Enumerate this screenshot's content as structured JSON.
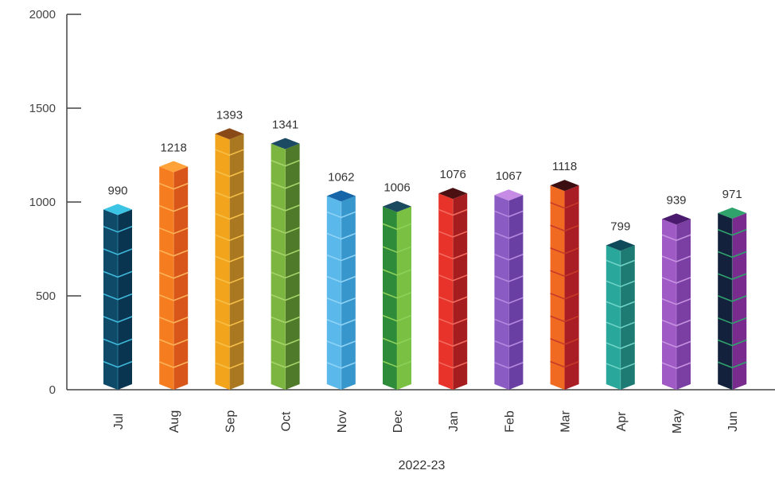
{
  "chart_data": {
    "type": "bar",
    "title": "",
    "xlabel": "2022-23",
    "ylabel": "",
    "ylim": [
      0,
      2000
    ],
    "yticks": [
      0,
      500,
      1000,
      1500,
      2000
    ],
    "ytick_labels": [
      "0",
      "500",
      "1000",
      "1500",
      "2000"
    ],
    "grid": false,
    "legend": "none",
    "categories": [
      "Jul",
      "Aug",
      "Sep",
      "Oct",
      "Nov",
      "Dec",
      "Jan",
      "Feb",
      "Mar",
      "Apr",
      "May",
      "Jun"
    ],
    "values": [
      990,
      1218,
      1393,
      1341,
      1062,
      1006,
      1076,
      1067,
      1118,
      799,
      939,
      971
    ],
    "data_labels": [
      "990",
      "1218",
      "1393",
      "1341",
      "1062",
      "1006",
      "1076",
      "1067",
      "1118",
      "799",
      "939",
      "971"
    ],
    "bar_colors": [
      {
        "front": "#0f4a68",
        "side": "#0a3550",
        "top": "#3cc4e4",
        "seam": "#3fb7d9"
      },
      {
        "front": "#f57d1f",
        "side": "#d9561a",
        "top": "#ffa23a",
        "seam": "#fdb35a"
      },
      {
        "front": "#f2a51c",
        "side": "#a97820",
        "top": "#8a4a17",
        "seam": "#f7c04a"
      },
      {
        "front": "#7cb641",
        "side": "#4f7a2a",
        "top": "#1c4a63",
        "seam": "#a7d46a"
      },
      {
        "front": "#5bb8ea",
        "side": "#3796cc",
        "top": "#1565a8",
        "seam": "#8fd3f6"
      },
      {
        "front": "#2e8b3a",
        "side": "#7ac143",
        "top": "#1b4a5e",
        "seam": "#8ed05a"
      },
      {
        "front": "#e8332a",
        "side": "#a51d1f",
        "top": "#4a1012",
        "seam": "#f36b5f"
      },
      {
        "front": "#8a5bc2",
        "side": "#6a3fa3",
        "top": "#c58be5",
        "seam": "#b48ae0"
      },
      {
        "front": "#f06a22",
        "side": "#a91e24",
        "top": "#3b0f12",
        "seam": "#c63a2a"
      },
      {
        "front": "#2aa79b",
        "side": "#1e7b73",
        "top": "#0e4a5a",
        "seam": "#6fd3c6"
      },
      {
        "front": "#a05ac5",
        "side": "#7b3fa3",
        "top": "#4a1a6e",
        "seam": "#c592e0"
      },
      {
        "front": "#14213d",
        "side": "#7a2c8e",
        "top": "#2fa36b",
        "seam": "#2fa36b"
      }
    ]
  }
}
